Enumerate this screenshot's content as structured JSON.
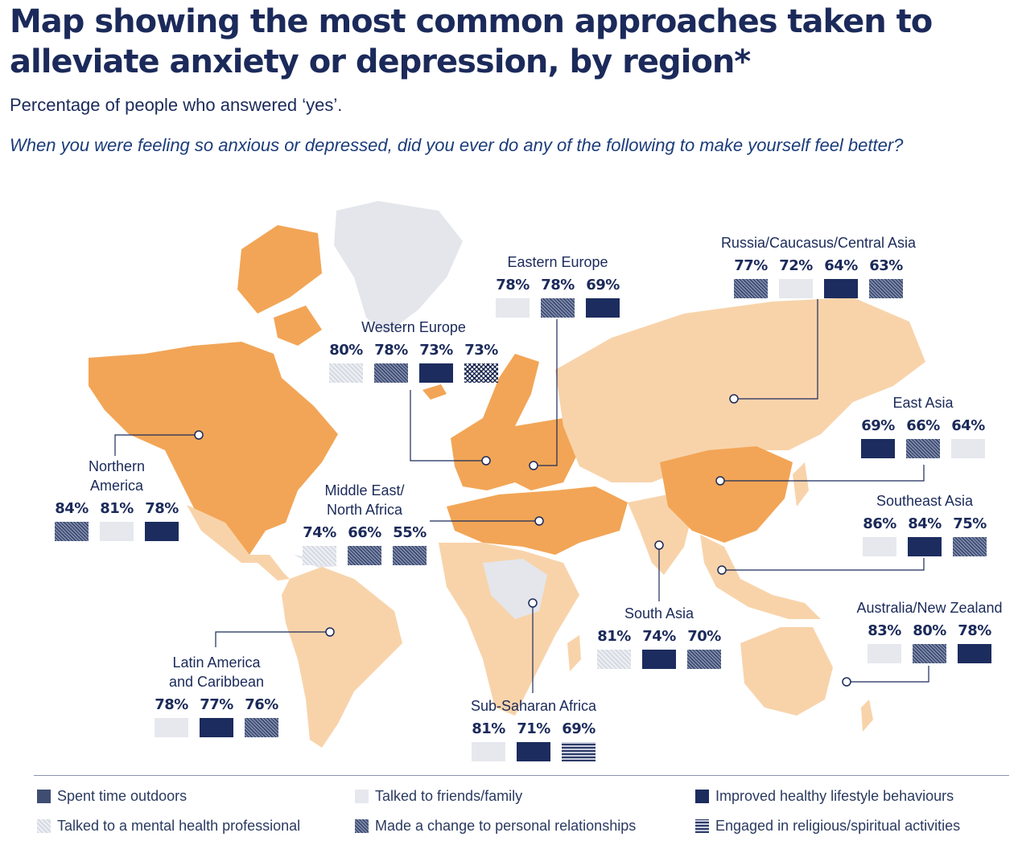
{
  "title": "Map showing the most common approaches taken to alleviate anxiety or depression, by region*",
  "subtitle": "Percentage of people who answered ‘yes’.",
  "question": "When you were feeling so anxious or depressed, did you ever do any of the following to make yourself feel better?",
  "colors": {
    "map_dark": "#f2a556",
    "map_light": "#f8d3aa",
    "map_none": "#e4e6ec",
    "navy": "#1c2c5e"
  },
  "regions": {
    "northern_america": {
      "name_l1": "Northern",
      "name_l2": "America",
      "values": [
        {
          "v": "84%",
          "approach": "relation"
        },
        {
          "v": "81%",
          "approach": "friends"
        },
        {
          "v": "78%",
          "approach": "healthy"
        }
      ]
    },
    "latin_america": {
      "name_l1": "Latin America",
      "name_l2": "and Caribbean",
      "values": [
        {
          "v": "78%",
          "approach": "friends"
        },
        {
          "v": "77%",
          "approach": "healthy"
        },
        {
          "v": "76%",
          "approach": "relation"
        }
      ]
    },
    "western_europe": {
      "name_l1": "Western Europe",
      "name_l2": "",
      "values": [
        {
          "v": "80%",
          "approach": "mental"
        },
        {
          "v": "78%",
          "approach": "relation"
        },
        {
          "v": "73%",
          "approach": "healthy"
        },
        {
          "v": "73%",
          "approach": "zigzag"
        }
      ]
    },
    "eastern_europe": {
      "name_l1": "Eastern Europe",
      "name_l2": "",
      "values": [
        {
          "v": "78%",
          "approach": "friends"
        },
        {
          "v": "78%",
          "approach": "relation"
        },
        {
          "v": "69%",
          "approach": "healthy"
        }
      ]
    },
    "russia": {
      "name_l1": "Russia/Caucasus/Central Asia",
      "name_l2": "",
      "values": [
        {
          "v": "77%",
          "approach": "relation"
        },
        {
          "v": "72%",
          "approach": "friends"
        },
        {
          "v": "64%",
          "approach": "healthy"
        },
        {
          "v": "63%",
          "approach": "relation"
        }
      ]
    },
    "mena": {
      "name_l1": "Middle East/",
      "name_l2": "North Africa",
      "values": [
        {
          "v": "74%",
          "approach": "mental"
        },
        {
          "v": "66%",
          "approach": "relation"
        },
        {
          "v": "55%",
          "approach": "relation"
        }
      ]
    },
    "east_asia": {
      "name_l1": "East Asia",
      "name_l2": "",
      "values": [
        {
          "v": "69%",
          "approach": "healthy"
        },
        {
          "v": "66%",
          "approach": "relation"
        },
        {
          "v": "64%",
          "approach": "friends"
        }
      ]
    },
    "southeast_asia": {
      "name_l1": "Southeast Asia",
      "name_l2": "",
      "values": [
        {
          "v": "86%",
          "approach": "friends"
        },
        {
          "v": "84%",
          "approach": "healthy"
        },
        {
          "v": "75%",
          "approach": "relation"
        }
      ]
    },
    "south_asia": {
      "name_l1": "South Asia",
      "name_l2": "",
      "values": [
        {
          "v": "81%",
          "approach": "mental"
        },
        {
          "v": "74%",
          "approach": "healthy"
        },
        {
          "v": "70%",
          "approach": "relation"
        }
      ]
    },
    "australia": {
      "name_l1": "Australia/New Zealand",
      "name_l2": "",
      "values": [
        {
          "v": "83%",
          "approach": "friends"
        },
        {
          "v": "80%",
          "approach": "relation"
        },
        {
          "v": "78%",
          "approach": "healthy"
        }
      ]
    },
    "ssa": {
      "name_l1": "Sub-Saharan Africa",
      "name_l2": "",
      "values": [
        {
          "v": "81%",
          "approach": "friends"
        },
        {
          "v": "71%",
          "approach": "healthy"
        },
        {
          "v": "69%",
          "approach": "religious"
        }
      ]
    }
  },
  "legend": {
    "outdoors": "Spent time outdoors",
    "friends": "Talked to friends/family",
    "healthy": "Improved healthy lifestyle behaviours",
    "mental": "Talked to a mental health professional",
    "relation": "Made a change to personal relationships",
    "religious": "Engaged in religious/spiritual activities"
  }
}
